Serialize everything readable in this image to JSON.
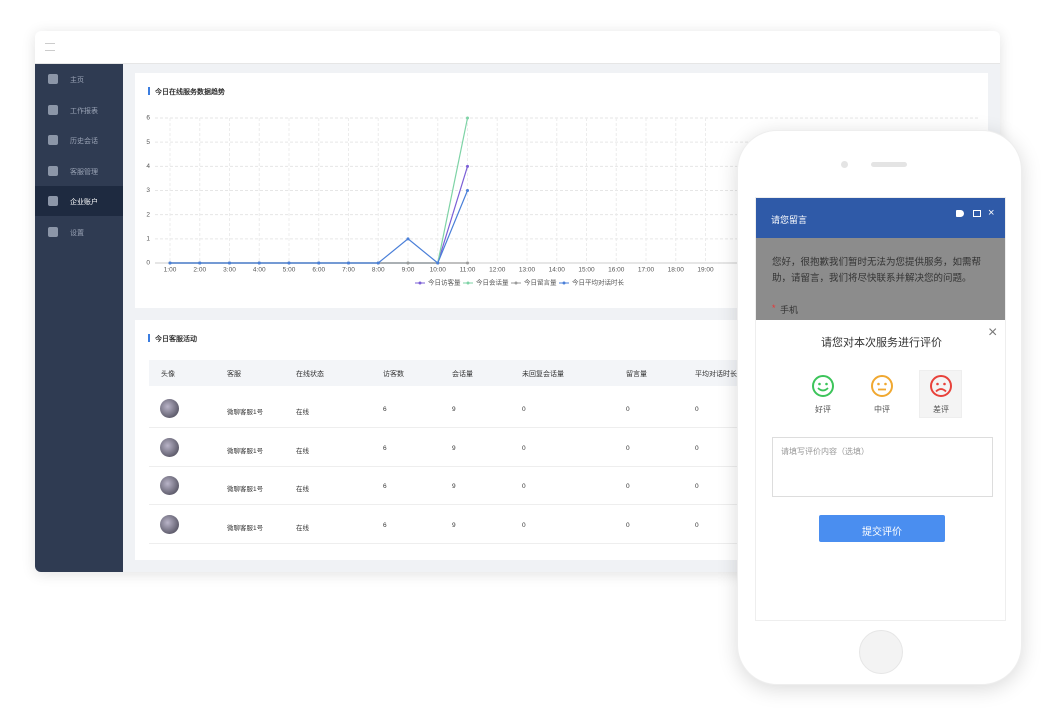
{
  "sidebar": {
    "menu": [
      "主页",
      "工作报表",
      "历史会话",
      "客服管理",
      "企业账户",
      "设置"
    ],
    "active_index": 4
  },
  "trend_card": {
    "title": "今日在线服务数据趋势"
  },
  "chart_data": {
    "type": "line",
    "categories": [
      "1:00",
      "2:00",
      "3:00",
      "4:00",
      "5:00",
      "6:00",
      "7:00",
      "8:00",
      "9:00",
      "10:00",
      "11:00",
      "12:00",
      "13:00",
      "14:00",
      "15:00",
      "16:00",
      "17:00",
      "18:00",
      "19:00"
    ],
    "series": [
      {
        "name": "今日访客量",
        "color": "#7b5fd6",
        "values": [
          0,
          0,
          0,
          0,
          0,
          0,
          0,
          0,
          0,
          0,
          4,
          null,
          null,
          null,
          null,
          null,
          null,
          null,
          null
        ]
      },
      {
        "name": "今日会话量",
        "color": "#7ed3a6",
        "values": [
          0,
          0,
          0,
          0,
          0,
          0,
          0,
          0,
          0,
          0,
          6,
          null,
          null,
          null,
          null,
          null,
          null,
          null,
          null
        ]
      },
      {
        "name": "今日留言量",
        "color": "#9a9a9a",
        "values": [
          0,
          0,
          0,
          0,
          0,
          0,
          0,
          0,
          0,
          0,
          0,
          null,
          null,
          null,
          null,
          null,
          null,
          null,
          null
        ]
      },
      {
        "name": "今日平均对话时长",
        "color": "#4a7fd8",
        "values": [
          0,
          0,
          0,
          0,
          0,
          0,
          0,
          0,
          1,
          0,
          3,
          null,
          null,
          null,
          null,
          null,
          null,
          null,
          null
        ]
      }
    ],
    "ylim": [
      0,
      6
    ],
    "yticks": [
      0,
      1,
      2,
      3,
      4,
      5,
      6
    ],
    "grid": true
  },
  "activity_card": {
    "title": "今日客服活动",
    "headers": [
      "头像",
      "客服",
      "在线状态",
      "访客数",
      "会话量",
      "未回复会话量",
      "留言量",
      "平均对话时长"
    ],
    "rows": [
      [
        "微聊客服1号",
        "在线",
        "6",
        "9",
        "0",
        "0",
        "0"
      ],
      [
        "微聊客服1号",
        "在线",
        "6",
        "9",
        "0",
        "0",
        "0"
      ],
      [
        "微聊客服1号",
        "在线",
        "6",
        "9",
        "0",
        "0",
        "0"
      ],
      [
        "微聊客服1号",
        "在线",
        "6",
        "9",
        "0",
        "0",
        "0"
      ]
    ]
  },
  "phone": {
    "header": "请您留言",
    "notice": "您好，很抱歉我们暂时无法为您提供服务，如需帮助，请留言，我们将尽快联系并解决您的问题。",
    "phone_field": "手机",
    "required_mark": "*",
    "rating": {
      "title": "请您对本次服务进行评价",
      "options": [
        "好评",
        "中评",
        "差评"
      ],
      "placeholder": "请填写评价内容（选填）",
      "submit": "提交评价"
    }
  }
}
